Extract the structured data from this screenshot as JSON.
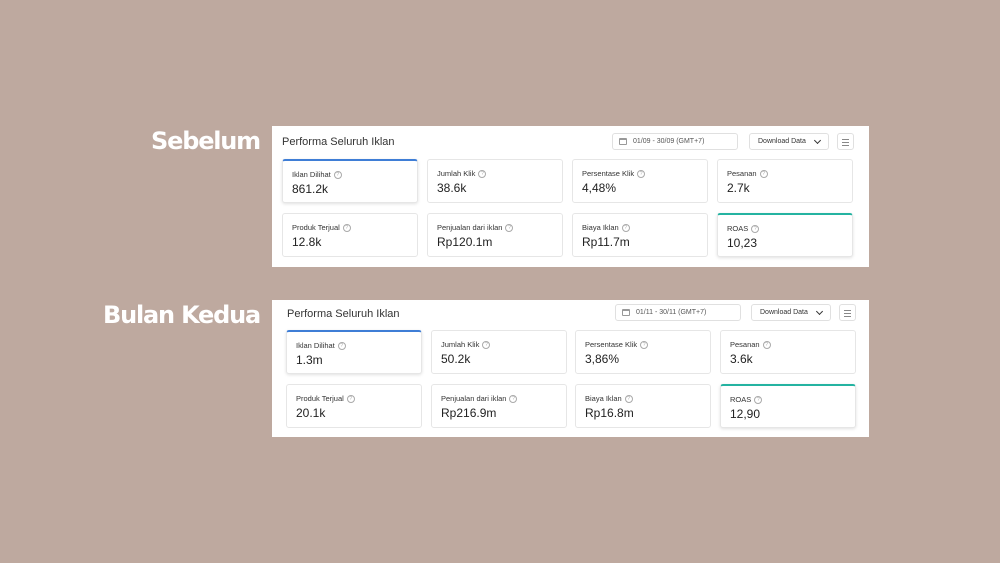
{
  "labels": {
    "before": "Sebelum",
    "after": "Bulan Kedua"
  },
  "panels": [
    {
      "title": "Performa Seluruh Iklan",
      "date_range": "01/09 - 30/09 (GMT+7)",
      "download_label": "Download Data",
      "metrics": [
        {
          "label": "Iklan Dilihat",
          "value": "861.2k",
          "accent": "#3f7ed6"
        },
        {
          "label": "Jumlah Klik",
          "value": "38.6k"
        },
        {
          "label": "Persentase Klik",
          "value": "4,48%"
        },
        {
          "label": "Pesanan",
          "value": "2.7k"
        },
        {
          "label": "Produk Terjual",
          "value": "12.8k"
        },
        {
          "label": "Penjualan dari iklan",
          "value": "Rp120.1m"
        },
        {
          "label": "Biaya Iklan",
          "value": "Rp11.7m"
        },
        {
          "label": "ROAS",
          "value": "10,23",
          "accent": "#24b3a1"
        }
      ]
    },
    {
      "title": "Performa Seluruh Iklan",
      "date_range": "01/11 - 30/11 (GMT+7)",
      "download_label": "Download Data",
      "metrics": [
        {
          "label": "Iklan Dilihat",
          "value": "1.3m",
          "accent": "#3f7ed6"
        },
        {
          "label": "Jumlah Klik",
          "value": "50.2k"
        },
        {
          "label": "Persentase Klik",
          "value": "3,86%"
        },
        {
          "label": "Pesanan",
          "value": "3.6k"
        },
        {
          "label": "Produk Terjual",
          "value": "20.1k"
        },
        {
          "label": "Penjualan dari iklan",
          "value": "Rp216.9m"
        },
        {
          "label": "Biaya Iklan",
          "value": "Rp16.8m"
        },
        {
          "label": "ROAS",
          "value": "12,90",
          "accent": "#24b3a1"
        }
      ]
    }
  ]
}
